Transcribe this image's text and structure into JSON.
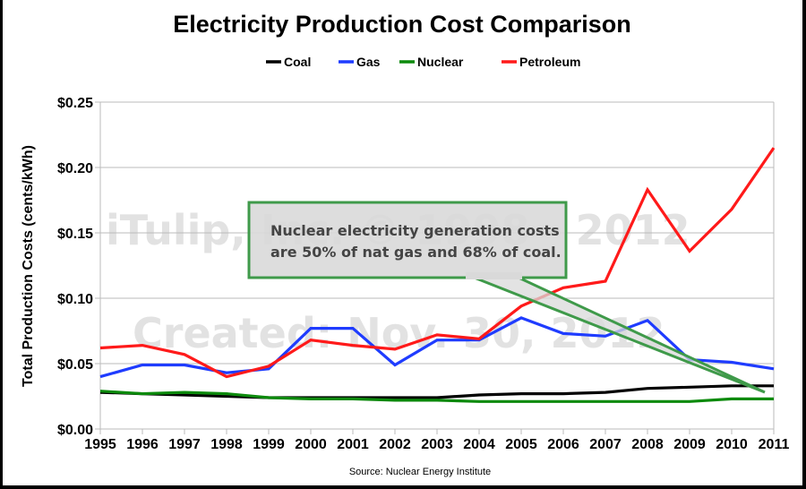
{
  "chart_data": {
    "type": "line",
    "title": "Electricity Production Cost Comparison",
    "xlabel": "",
    "ylabel": "Total Production Costs (cents/kWh)",
    "x": [
      "1995",
      "1996",
      "1997",
      "1998",
      "1999",
      "2000",
      "2001",
      "2002",
      "2003",
      "2004",
      "2005",
      "2006",
      "2007",
      "2008",
      "2009",
      "2010",
      "2011"
    ],
    "ylim": [
      0,
      0.25
    ],
    "yticks": [
      0,
      0.05,
      0.1,
      0.15,
      0.2,
      0.25
    ],
    "ytick_labels": [
      "$0.00",
      "$0.05",
      "$0.10",
      "$0.15",
      "$0.20",
      "$0.25"
    ],
    "grid": true,
    "legend_position": "top-center",
    "series": [
      {
        "name": "Coal",
        "color": "#000000",
        "values": [
          0.028,
          0.027,
          0.026,
          0.025,
          0.024,
          0.024,
          0.024,
          0.024,
          0.024,
          0.026,
          0.027,
          0.027,
          0.028,
          0.031,
          0.032,
          0.033,
          0.033
        ]
      },
      {
        "name": "Gas",
        "color": "#1f3cff",
        "values": [
          0.04,
          0.049,
          0.049,
          0.043,
          0.046,
          0.077,
          0.077,
          0.049,
          0.068,
          0.068,
          0.085,
          0.073,
          0.071,
          0.083,
          0.053,
          0.051,
          0.046
        ]
      },
      {
        "name": "Nuclear",
        "color": "#0c8a0c",
        "values": [
          0.029,
          0.027,
          0.028,
          0.027,
          0.024,
          0.023,
          0.023,
          0.022,
          0.022,
          0.021,
          0.021,
          0.021,
          0.021,
          0.021,
          0.021,
          0.023,
          0.023
        ]
      },
      {
        "name": "Petroleum",
        "color": "#ff1a1a",
        "values": [
          0.062,
          0.064,
          0.057,
          0.04,
          0.048,
          0.068,
          0.064,
          0.061,
          0.072,
          0.069,
          0.094,
          0.108,
          0.113,
          0.183,
          0.136,
          0.168,
          0.215
        ]
      }
    ],
    "annotations": [
      {
        "text_lines": [
          "Nuclear electricity generation costs",
          "are 50% of nat gas and 68% of coal."
        ],
        "points_to": {
          "x": "2011",
          "series": "Nuclear"
        }
      }
    ],
    "watermark_lines": [
      "iTulip, Inc. © 1998 - 2012",
      "Created: Nov. 30, 2012"
    ],
    "source": "Source: Nuclear Energy Institute"
  },
  "colors": {
    "grid": "#bbbbbb",
    "callout_fill": "#d9d9d9",
    "callout_border": "#3f9a4a"
  }
}
